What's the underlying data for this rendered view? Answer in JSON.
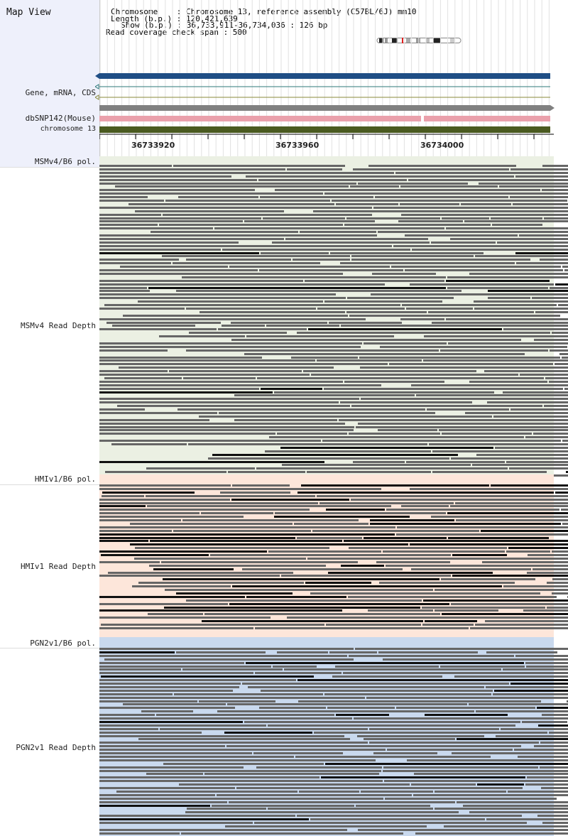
{
  "app": {
    "title": "Map View"
  },
  "info": {
    "chromosome": "Chromosome    : Chromosome 13, reference assembly (C57BL/6J) mm10",
    "length": "Length (b.p.) : 120,421,639",
    "show": "Show (b.p.) : 36,733,911-36,734,036 : 126 bp",
    "coverage": "Read coverage check span : 500"
  },
  "tracks": {
    "gene": "Gene, mRNA, CDS",
    "dbsnp": "dbSNP142(Mouse)",
    "chromosome": "chromosome 13"
  },
  "ruler": {
    "ticks": [
      "36733920",
      "36733960",
      "36734000"
    ]
  },
  "sections": [
    {
      "pol_label": "MSMv4/B6 pol.",
      "depth_label": "MSMv4 Read Depth",
      "bg": "#ebf0e3"
    },
    {
      "pol_label": "HMIv1/B6 pol.",
      "depth_label": "HMIv1 Read Depth",
      "bg": "#fde6da"
    },
    {
      "pol_label": "PGN2v1/B6 pol.",
      "depth_label": "PGN2v1 Read Depth",
      "bg": "#c9d9ee"
    }
  ],
  "colors": {
    "gene_bar": "#1f4e85",
    "gene_line": "#2d7a7a",
    "gene_line2": "#8a8a3a",
    "snp_gray": "#808080",
    "snp_pink": "#eaa0ab",
    "chromosome_bar": "#4a5a20",
    "read": "#666666",
    "read_dark": "#111111",
    "left_panel": "#eef0fb"
  }
}
